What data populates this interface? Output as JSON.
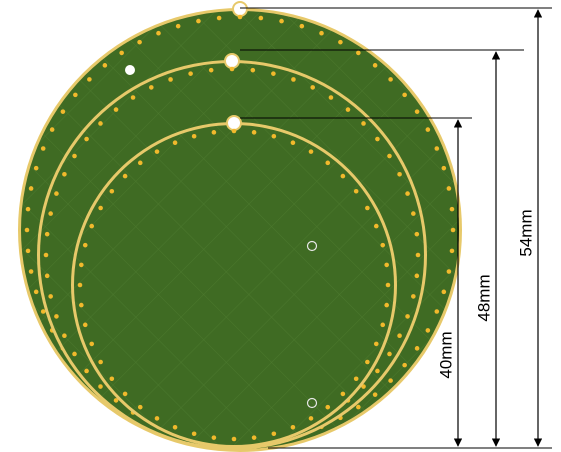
{
  "dimensions": [
    {
      "label": "54mm"
    },
    {
      "label": "48mm"
    },
    {
      "label": "40mm"
    }
  ],
  "colors": {
    "pcb_green": "#3f6b23",
    "pcb_green_dark": "#2f5519",
    "gold_edge": "#e7c96a",
    "gold_dot": "#f1b92c",
    "line": "#000000",
    "background": "#ffffff"
  }
}
